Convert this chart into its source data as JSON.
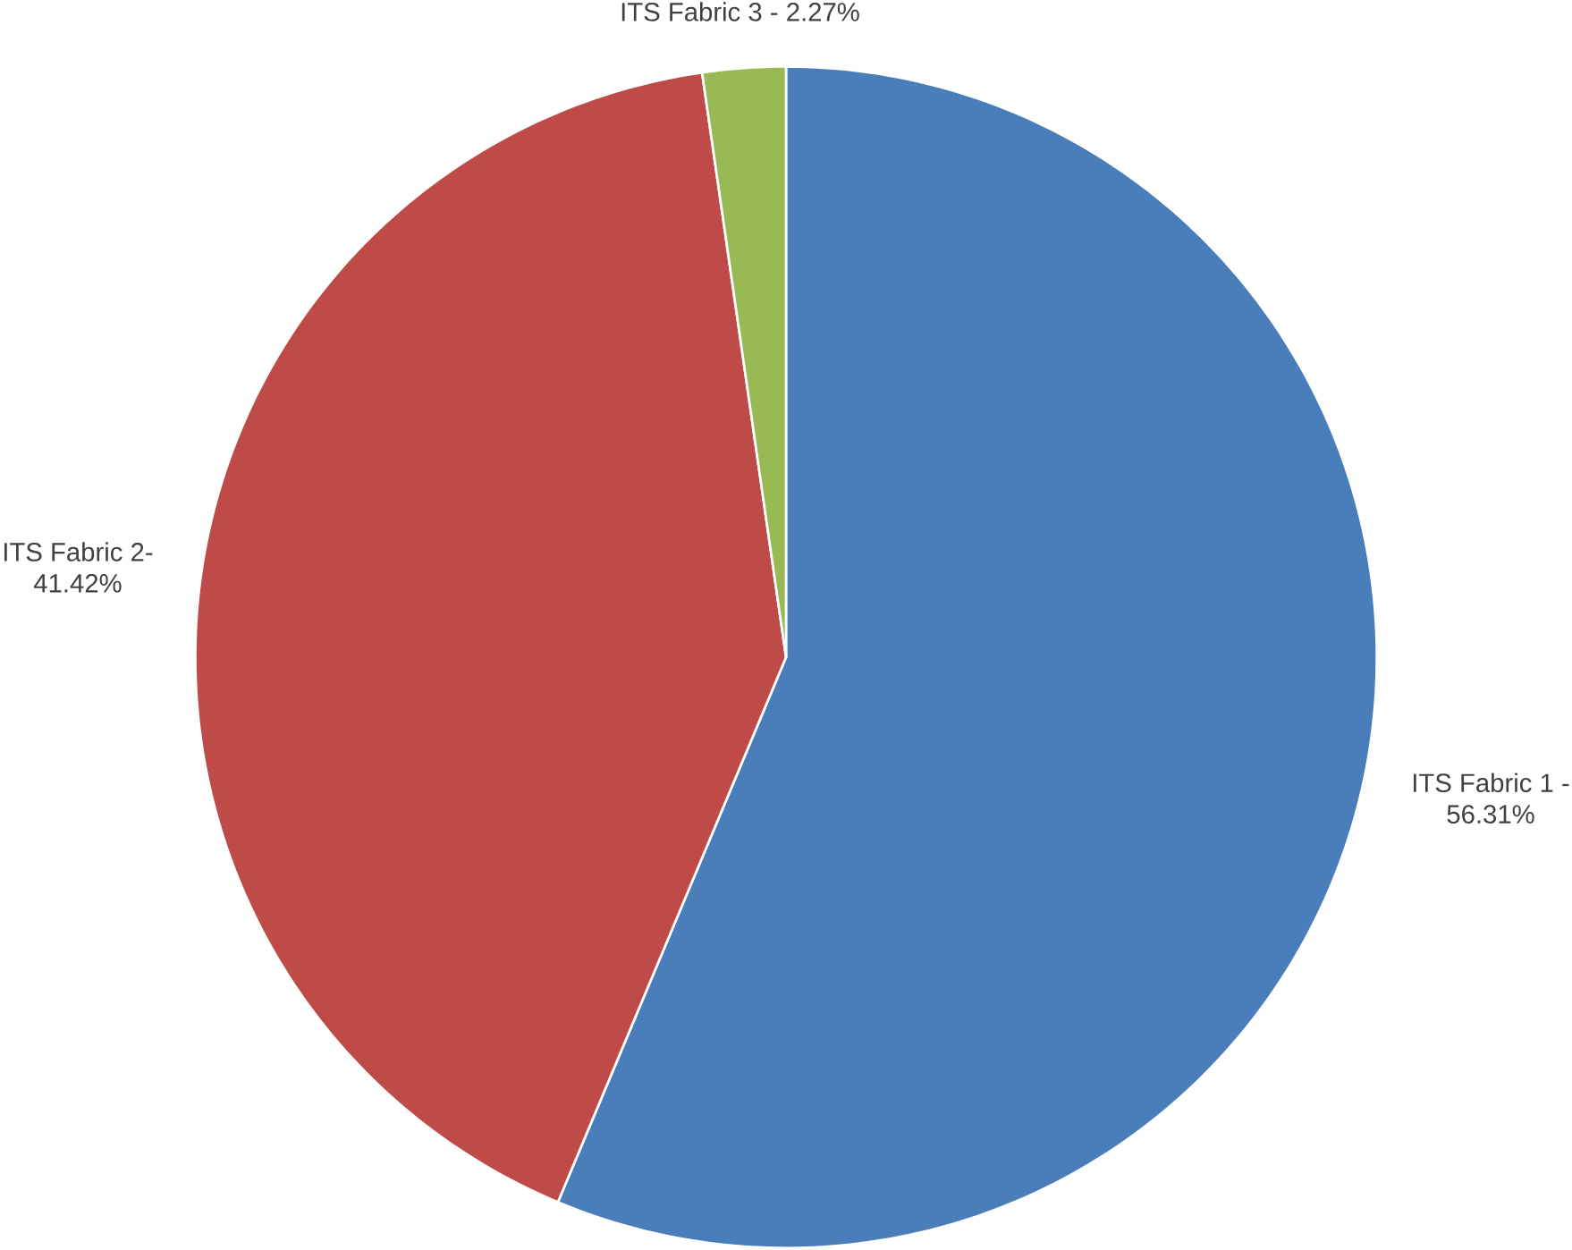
{
  "chart_data": {
    "type": "pie",
    "categories": [
      "ITS Fabric 1 -",
      "ITS Fabric 2-",
      "ITS Fabric 3 -"
    ],
    "values": [
      56.31,
      41.42,
      2.27
    ],
    "value_labels": [
      "56.31%",
      "41.42%",
      "2.27%"
    ],
    "colors": [
      "#4a7ebb",
      "#be4b48",
      "#98b954"
    ]
  }
}
